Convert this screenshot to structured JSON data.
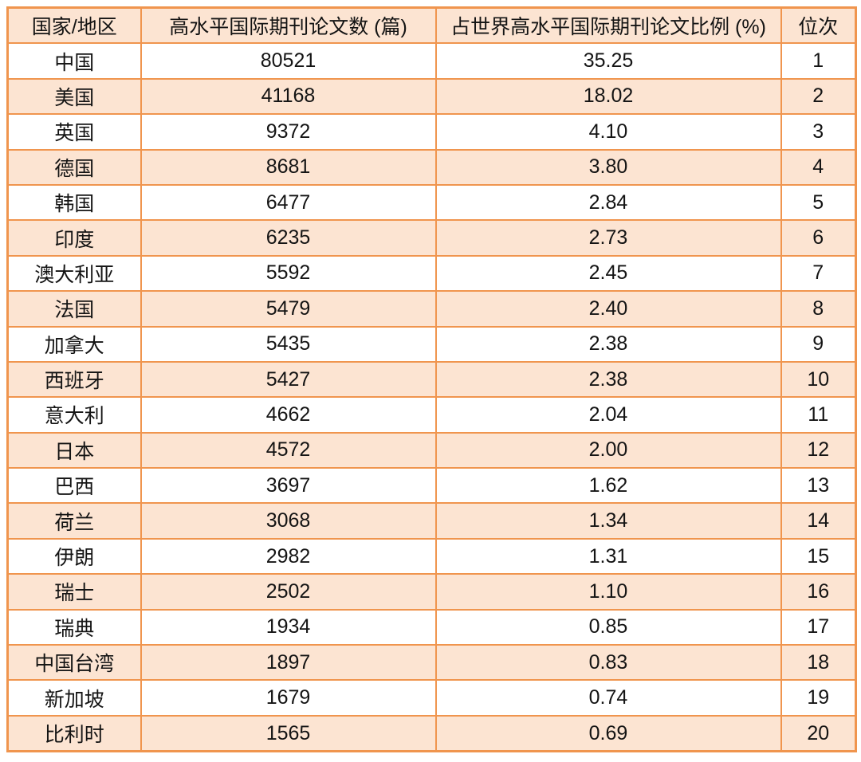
{
  "colors": {
    "border": "#f0954e",
    "stripe": "#fce4d2",
    "row_white": "#ffffff",
    "text": "#141414"
  },
  "table": {
    "columns": [
      {
        "key": "country",
        "label": "国家/地区"
      },
      {
        "key": "papers",
        "label": "高水平国际期刊论文数 (篇)"
      },
      {
        "key": "share",
        "label": "占世界高水平国际期刊论文比例 (%)"
      },
      {
        "key": "rank",
        "label": "位次"
      }
    ],
    "rows": [
      {
        "country": "中国",
        "papers": "80521",
        "share": "35.25",
        "rank": "1"
      },
      {
        "country": "美国",
        "papers": "41168",
        "share": "18.02",
        "rank": "2"
      },
      {
        "country": "英国",
        "papers": "9372",
        "share": "4.10",
        "rank": "3"
      },
      {
        "country": "德国",
        "papers": "8681",
        "share": "3.80",
        "rank": "4"
      },
      {
        "country": "韩国",
        "papers": "6477",
        "share": "2.84",
        "rank": "5"
      },
      {
        "country": "印度",
        "papers": "6235",
        "share": "2.73",
        "rank": "6"
      },
      {
        "country": "澳大利亚",
        "papers": "5592",
        "share": "2.45",
        "rank": "7"
      },
      {
        "country": "法国",
        "papers": "5479",
        "share": "2.40",
        "rank": "8"
      },
      {
        "country": "加拿大",
        "papers": "5435",
        "share": "2.38",
        "rank": "9"
      },
      {
        "country": "西班牙",
        "papers": "5427",
        "share": "2.38",
        "rank": "10"
      },
      {
        "country": "意大利",
        "papers": "4662",
        "share": "2.04",
        "rank": "11"
      },
      {
        "country": "日本",
        "papers": "4572",
        "share": "2.00",
        "rank": "12"
      },
      {
        "country": "巴西",
        "papers": "3697",
        "share": "1.62",
        "rank": "13"
      },
      {
        "country": "荷兰",
        "papers": "3068",
        "share": "1.34",
        "rank": "14"
      },
      {
        "country": "伊朗",
        "papers": "2982",
        "share": "1.31",
        "rank": "15"
      },
      {
        "country": "瑞士",
        "papers": "2502",
        "share": "1.10",
        "rank": "16"
      },
      {
        "country": "瑞典",
        "papers": "1934",
        "share": "0.85",
        "rank": "17"
      },
      {
        "country": "中国台湾",
        "papers": "1897",
        "share": "0.83",
        "rank": "18"
      },
      {
        "country": "新加坡",
        "papers": "1679",
        "share": "0.74",
        "rank": "19"
      },
      {
        "country": "比利时",
        "papers": "1565",
        "share": "0.69",
        "rank": "20"
      }
    ]
  },
  "chart_data": {
    "type": "table",
    "columns": [
      "国家/地区",
      "高水平国际期刊论文数 (篇)",
      "占世界高水平国际期刊论文比例 (%)",
      "位次"
    ],
    "rows": [
      [
        "中国",
        80521,
        35.25,
        1
      ],
      [
        "美国",
        41168,
        18.02,
        2
      ],
      [
        "英国",
        9372,
        4.1,
        3
      ],
      [
        "德国",
        8681,
        3.8,
        4
      ],
      [
        "韩国",
        6477,
        2.84,
        5
      ],
      [
        "印度",
        6235,
        2.73,
        6
      ],
      [
        "澳大利亚",
        5592,
        2.45,
        7
      ],
      [
        "法国",
        5479,
        2.4,
        8
      ],
      [
        "加拿大",
        5435,
        2.38,
        9
      ],
      [
        "西班牙",
        5427,
        2.38,
        10
      ],
      [
        "意大利",
        4662,
        2.04,
        11
      ],
      [
        "日本",
        4572,
        2.0,
        12
      ],
      [
        "巴西",
        3697,
        1.62,
        13
      ],
      [
        "荷兰",
        3068,
        1.34,
        14
      ],
      [
        "伊朗",
        2982,
        1.31,
        15
      ],
      [
        "瑞士",
        2502,
        1.1,
        16
      ],
      [
        "瑞典",
        1934,
        0.85,
        17
      ],
      [
        "中国台湾",
        1897,
        0.83,
        18
      ],
      [
        "新加坡",
        1679,
        0.74,
        19
      ],
      [
        "比利时",
        1565,
        0.69,
        20
      ]
    ]
  }
}
